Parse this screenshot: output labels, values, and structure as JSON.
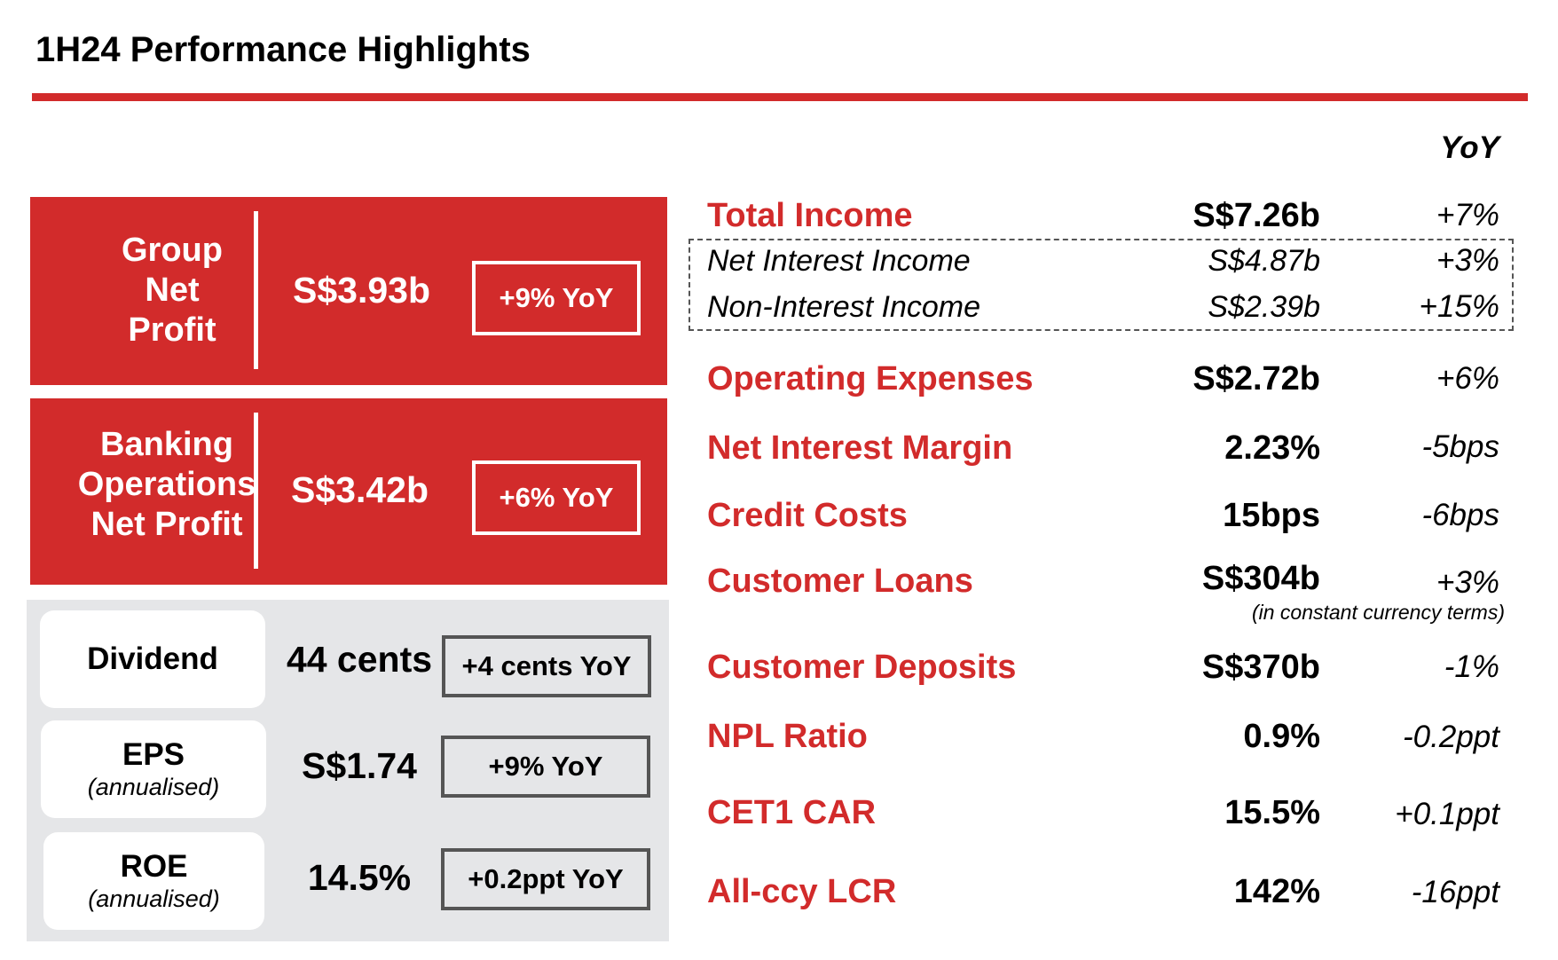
{
  "title": "1H24 Performance Highlights",
  "colors": {
    "accent": "#d22b2b",
    "panel_grey": "#e5e6e8",
    "outline_dark": "#555555"
  },
  "headline_boxes": [
    {
      "label": "Group Net Profit",
      "label_lines": [
        "Group",
        "Net",
        "Profit"
      ],
      "value": "S$3.93b",
      "yoy": "+9% YoY"
    },
    {
      "label": "Banking Operations Net Profit",
      "label_lines": [
        "Banking",
        "Operations",
        "Net Profit"
      ],
      "value": "S$3.42b",
      "yoy": "+6% YoY"
    }
  ],
  "per_share": [
    {
      "title": "Dividend",
      "subtitle": "",
      "value": "44 cents",
      "yoy": "+4 cents YoY"
    },
    {
      "title": "EPS",
      "subtitle": "(annualised)",
      "value": "S$1.74",
      "yoy": "+9% YoY"
    },
    {
      "title": "ROE",
      "subtitle": "(annualised)",
      "value": "14.5%",
      "yoy": "+0.2ppt YoY"
    }
  ],
  "metrics": {
    "yoy_header": "YoY",
    "rows": [
      {
        "label": "Total Income",
        "value": "S$7.26b",
        "yoy": "+7%"
      },
      {
        "label": "Net Interest Income",
        "value": "S$4.87b",
        "yoy": "+3%"
      },
      {
        "label": "Non-Interest Income",
        "value": "S$2.39b",
        "yoy": "+15%"
      },
      {
        "label": "Operating Expenses",
        "value": "S$2.72b",
        "yoy": "+6%"
      },
      {
        "label": "Net Interest Margin",
        "value": "2.23%",
        "yoy": "-5bps"
      },
      {
        "label": "Credit Costs",
        "value": "15bps",
        "yoy": "-6bps"
      },
      {
        "label": "Customer Loans",
        "value": "S$304b",
        "yoy": "+3%",
        "note": "(in constant currency terms)"
      },
      {
        "label": "Customer Deposits",
        "value": "S$370b",
        "yoy": "-1%"
      },
      {
        "label": "NPL Ratio",
        "value": "0.9%",
        "yoy": "-0.2ppt"
      },
      {
        "label": "CET1 CAR",
        "value": "15.5%",
        "yoy": "+0.1ppt"
      },
      {
        "label": "All-ccy LCR",
        "value": "142%",
        "yoy": "-16ppt"
      }
    ]
  }
}
